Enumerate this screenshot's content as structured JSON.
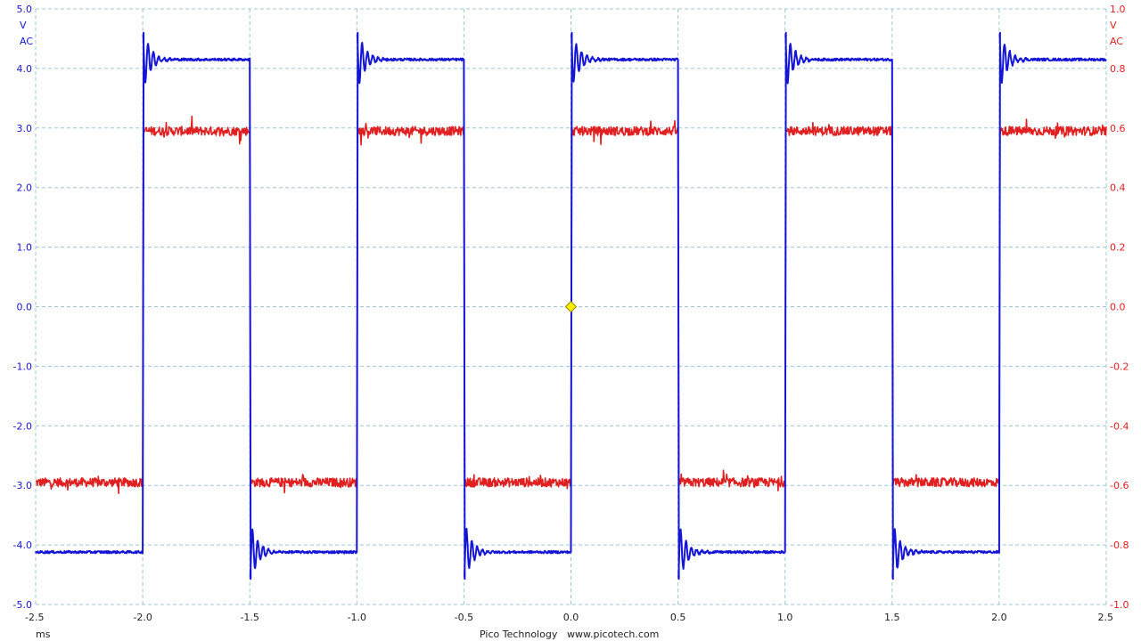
{
  "chart_data": {
    "type": "line",
    "title": "",
    "grid": true,
    "x_axis": {
      "range": [
        -2.5,
        2.5
      ],
      "ticks": [
        "-2.5",
        "-2.0",
        "-1.5",
        "-1.0",
        "-0.5",
        "0.0",
        "0.5",
        "1.0",
        "1.5",
        "2.0",
        "2.5"
      ],
      "unit": "ms"
    },
    "y_axis_left": {
      "range": [
        -5.0,
        5.0
      ],
      "ticks": [
        "5.0",
        "4.0",
        "3.0",
        "2.0",
        "1.0",
        "0.0",
        "-1.0",
        "-2.0",
        "-3.0",
        "-4.0",
        "-5.0"
      ],
      "unit": "V",
      "coupling": "AC",
      "color": "#1515d6"
    },
    "y_axis_right": {
      "range": [
        -1.0,
        1.0
      ],
      "ticks": [
        "1.0",
        "0.8",
        "0.6",
        "0.4",
        "0.2",
        "0.0",
        "-0.2",
        "-0.4",
        "-0.6",
        "-0.8",
        "-1.0"
      ],
      "unit": "V",
      "coupling": "AC",
      "color": "#e02020"
    },
    "series": [
      {
        "axis": "left",
        "color": "#1515d6",
        "shape": "square wave with ringing overshoot",
        "high": 4.15,
        "low": -4.12,
        "overshoot_peak": 4.6,
        "undershoot_peak": -4.5,
        "rising_edges_ms": [
          -2.0,
          -1.0,
          0.0,
          1.0,
          2.0
        ],
        "falling_edges_ms": [
          -1.5,
          -0.5,
          0.5,
          1.5
        ]
      },
      {
        "axis": "right",
        "color": "#e02020",
        "shape": "noisy square wave",
        "high": 0.59,
        "low": -0.59,
        "rising_edges_ms": [
          -2.0,
          -1.0,
          0.0,
          1.0,
          2.0
        ],
        "falling_edges_ms": [
          -1.5,
          -0.5,
          0.5,
          1.5
        ]
      }
    ],
    "trigger": {
      "x": 0.0,
      "y": 0.0,
      "color": "#ffee00"
    }
  },
  "footer": {
    "brand": "Pico Technology",
    "url": "www.picotech.com"
  }
}
